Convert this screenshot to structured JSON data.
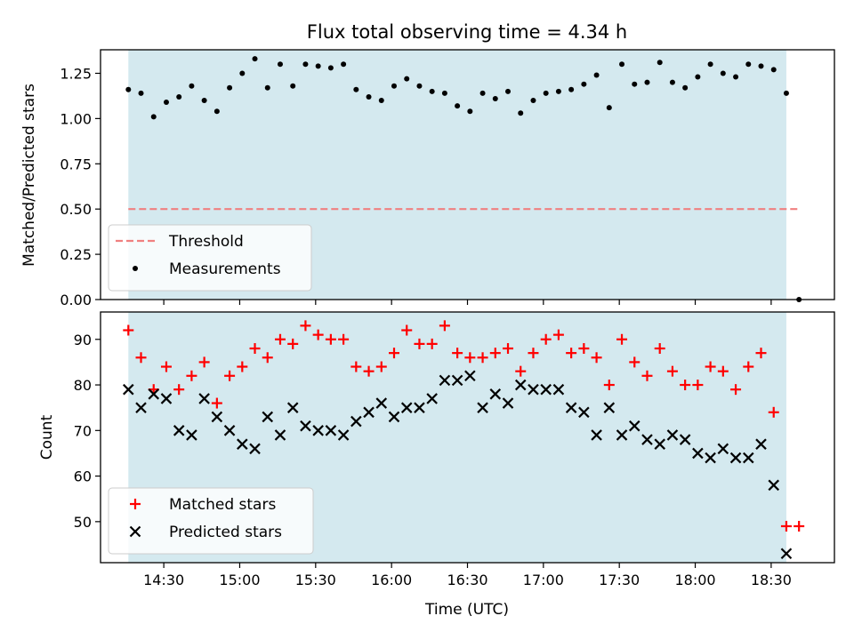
{
  "chart_data": [
    {
      "type": "line",
      "title": "Flux total observing time = 4.34 h",
      "xlabel": "",
      "ylabel": "Matched/Predicted stars",
      "ylim": [
        0,
        1.38
      ],
      "xlim": [
        "14:05",
        "18:55"
      ],
      "yticks": [
        "0.00",
        "0.25",
        "0.50",
        "0.75",
        "1.00",
        "1.25"
      ],
      "shaded_interval": [
        "14:16",
        "18:36"
      ],
      "shade_color": "#d4e9ef",
      "legend_position": "lower-left",
      "series": [
        {
          "name": "Threshold",
          "kind": "dashed-line",
          "color": "#f08080",
          "x": [
            "14:16",
            "18:41"
          ],
          "y": [
            0.5,
            0.5
          ]
        },
        {
          "name": "Measurements",
          "kind": "scatter-dot",
          "color": "#000000",
          "x": [
            "14:16",
            "14:21",
            "14:26",
            "14:31",
            "14:36",
            "14:41",
            "14:46",
            "14:51",
            "14:56",
            "15:01",
            "15:06",
            "15:11",
            "15:16",
            "15:21",
            "15:26",
            "15:31",
            "15:36",
            "15:41",
            "15:46",
            "15:51",
            "15:56",
            "16:01",
            "16:06",
            "16:11",
            "16:16",
            "16:21",
            "16:26",
            "16:31",
            "16:36",
            "16:41",
            "16:46",
            "16:51",
            "16:56",
            "17:01",
            "17:06",
            "17:11",
            "17:16",
            "17:21",
            "17:26",
            "17:31",
            "17:36",
            "17:41",
            "17:46",
            "17:51",
            "17:56",
            "18:01",
            "18:06",
            "18:11",
            "18:16",
            "18:21",
            "18:26",
            "18:31",
            "18:36",
            "18:41"
          ],
          "y": [
            1.16,
            1.14,
            1.01,
            1.09,
            1.12,
            1.18,
            1.1,
            1.04,
            1.17,
            1.25,
            1.33,
            1.17,
            1.3,
            1.18,
            1.3,
            1.29,
            1.28,
            1.3,
            1.16,
            1.12,
            1.1,
            1.18,
            1.22,
            1.18,
            1.15,
            1.14,
            1.07,
            1.04,
            1.14,
            1.11,
            1.15,
            1.03,
            1.1,
            1.14,
            1.15,
            1.16,
            1.19,
            1.24,
            1.06,
            1.3,
            1.19,
            1.2,
            1.31,
            1.2,
            1.17,
            1.23,
            1.3,
            1.25,
            1.23,
            1.3,
            1.29,
            1.27,
            1.14,
            0.0
          ]
        }
      ]
    },
    {
      "type": "scatter",
      "title": "",
      "xlabel": "Time (UTC)",
      "ylabel": "Count",
      "ylim": [
        41,
        96
      ],
      "xlim": [
        "14:05",
        "18:55"
      ],
      "xticks": [
        "14:30",
        "15:00",
        "15:30",
        "16:00",
        "16:30",
        "17:00",
        "17:30",
        "18:00",
        "18:30"
      ],
      "yticks": [
        "50",
        "60",
        "70",
        "80",
        "90"
      ],
      "shaded_interval": [
        "14:16",
        "18:36"
      ],
      "shade_color": "#d4e9ef",
      "legend_position": "lower-left",
      "series": [
        {
          "name": "Matched stars",
          "kind": "plus",
          "color": "#ff0000",
          "x": [
            "14:16",
            "14:21",
            "14:26",
            "14:31",
            "14:36",
            "14:41",
            "14:46",
            "14:51",
            "14:56",
            "15:01",
            "15:06",
            "15:11",
            "15:16",
            "15:21",
            "15:26",
            "15:31",
            "15:36",
            "15:41",
            "15:46",
            "15:51",
            "15:56",
            "16:01",
            "16:06",
            "16:11",
            "16:16",
            "16:21",
            "16:26",
            "16:31",
            "16:36",
            "16:41",
            "16:46",
            "16:51",
            "16:56",
            "17:01",
            "17:06",
            "17:11",
            "17:16",
            "17:21",
            "17:26",
            "17:31",
            "17:36",
            "17:41",
            "17:46",
            "17:51",
            "17:56",
            "18:01",
            "18:06",
            "18:11",
            "18:16",
            "18:21",
            "18:26",
            "18:31",
            "18:36",
            "18:41"
          ],
          "y": [
            92,
            86,
            79,
            84,
            79,
            82,
            85,
            76,
            82,
            84,
            88,
            86,
            90,
            89,
            93,
            91,
            90,
            90,
            84,
            83,
            84,
            87,
            92,
            89,
            89,
            93,
            87,
            86,
            86,
            87,
            88,
            83,
            87,
            90,
            91,
            87,
            88,
            86,
            80,
            90,
            85,
            82,
            88,
            83,
            80,
            80,
            84,
            83,
            79,
            84,
            87,
            74,
            49,
            49
          ]
        },
        {
          "name": "Predicted stars",
          "kind": "x",
          "color": "#000000",
          "x": [
            "14:16",
            "14:21",
            "14:26",
            "14:31",
            "14:36",
            "14:41",
            "14:46",
            "14:51",
            "14:56",
            "15:01",
            "15:06",
            "15:11",
            "15:16",
            "15:21",
            "15:26",
            "15:31",
            "15:36",
            "15:41",
            "15:46",
            "15:51",
            "15:56",
            "16:01",
            "16:06",
            "16:11",
            "16:16",
            "16:21",
            "16:26",
            "16:31",
            "16:36",
            "16:41",
            "16:46",
            "16:51",
            "16:56",
            "17:01",
            "17:06",
            "17:11",
            "17:16",
            "17:21",
            "17:26",
            "17:31",
            "17:36",
            "17:41",
            "17:46",
            "17:51",
            "17:56",
            "18:01",
            "18:06",
            "18:11",
            "18:16",
            "18:21",
            "18:26",
            "18:31",
            "18:36"
          ],
          "y": [
            79,
            75,
            78,
            77,
            70,
            69,
            77,
            73,
            70,
            67,
            66,
            73,
            69,
            75,
            71,
            70,
            70,
            69,
            72,
            74,
            76,
            73,
            75,
            75,
            77,
            81,
            81,
            82,
            75,
            78,
            76,
            80,
            79,
            79,
            79,
            75,
            74,
            69,
            75,
            69,
            71,
            68,
            67,
            69,
            68,
            65,
            64,
            66,
            64,
            64,
            67,
            58,
            43
          ]
        }
      ]
    }
  ]
}
